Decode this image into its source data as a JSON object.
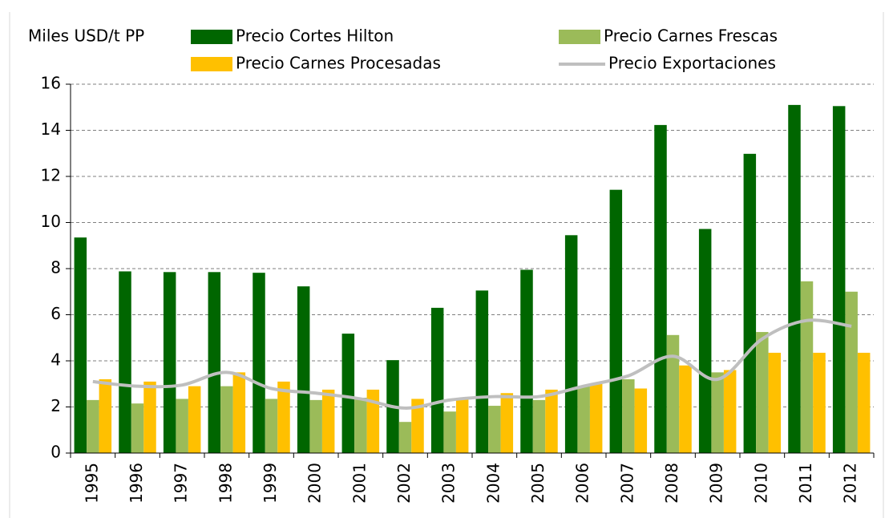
{
  "chart_data": {
    "type": "bar",
    "y_label": "Miles USD/t PP",
    "categories": [
      "1995",
      "1996",
      "1997",
      "1998",
      "1999",
      "2000",
      "2001",
      "2002",
      "2003",
      "2004",
      "2005",
      "2006",
      "2007",
      "2008",
      "2009",
      "2010",
      "2011",
      "2012"
    ],
    "series": [
      {
        "name": "Precio Cortes Hilton",
        "color": "#006600",
        "type": "bar",
        "values": [
          9.35,
          7.88,
          7.85,
          7.85,
          7.82,
          7.23,
          5.18,
          4.03,
          6.3,
          7.05,
          7.95,
          9.45,
          11.42,
          14.23,
          9.72,
          12.98,
          15.1,
          15.05
        ]
      },
      {
        "name": "Precio Carnes Frescas",
        "color": "#9bbb59",
        "type": "bar",
        "values": [
          2.3,
          2.15,
          2.35,
          2.9,
          2.35,
          2.3,
          2.4,
          1.35,
          1.8,
          2.05,
          2.3,
          2.9,
          3.2,
          5.12,
          3.5,
          5.25,
          7.45,
          7.0
        ]
      },
      {
        "name": "Precio Carnes Procesadas",
        "color": "#ffc000",
        "type": "bar",
        "values": [
          3.2,
          3.1,
          2.9,
          3.5,
          3.1,
          2.75,
          2.75,
          2.35,
          2.35,
          2.6,
          2.75,
          3.0,
          2.8,
          3.8,
          3.6,
          4.35,
          4.35,
          4.35
        ]
      },
      {
        "name": "Precio Exportaciones",
        "color": "#bfbfbf",
        "type": "line",
        "values": [
          3.1,
          2.9,
          2.95,
          3.5,
          2.8,
          2.6,
          2.35,
          1.95,
          2.3,
          2.45,
          2.45,
          2.9,
          3.35,
          4.2,
          3.2,
          4.95,
          5.75,
          5.5
        ]
      }
    ],
    "ylim": [
      0,
      16
    ],
    "yticks": [
      0,
      2,
      4,
      6,
      8,
      10,
      12,
      14,
      16
    ],
    "grid": true
  }
}
